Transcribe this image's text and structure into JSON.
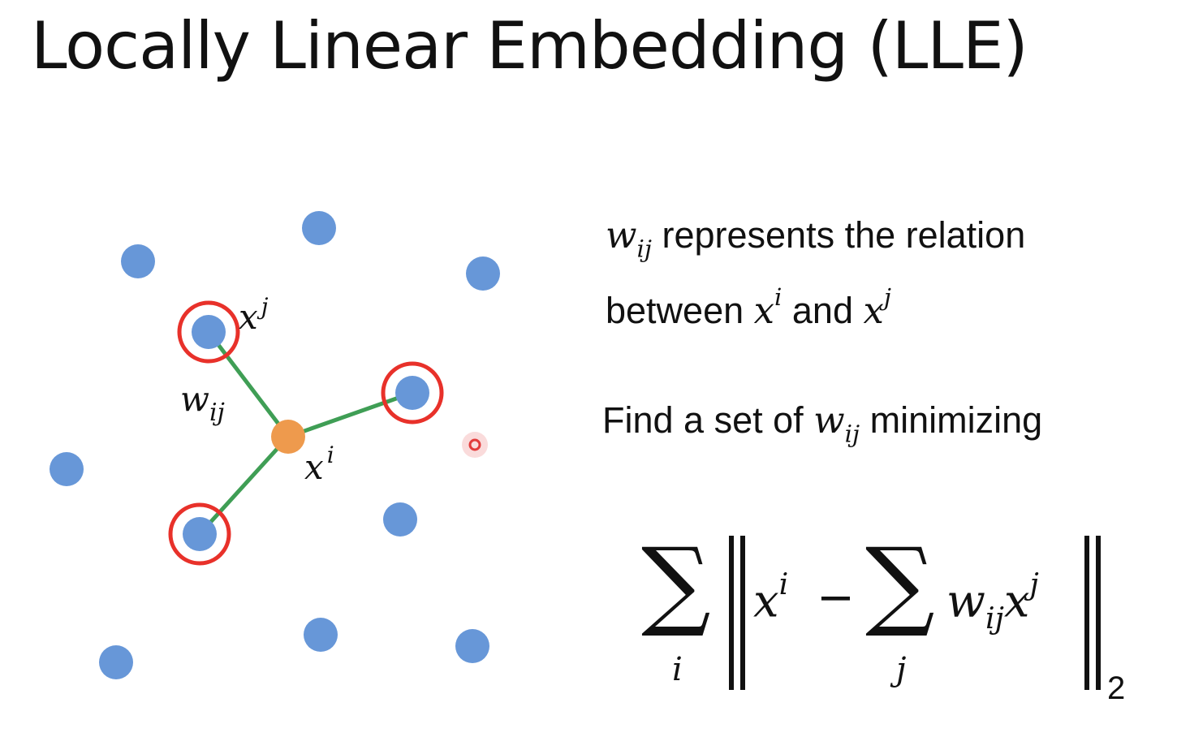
{
  "title": "Locally Linear Embedding (LLE)",
  "diagram": {
    "label_xj": "x",
    "label_xj_sup": "j",
    "label_wij": "w",
    "label_wij_sub": "ij",
    "label_xi": "x",
    "label_xi_sup": "i"
  },
  "colors": {
    "point": "#6797d8",
    "center_point": "#ee9a4d",
    "neighbor_ring": "#e8312a",
    "edge": "#3f9e55",
    "cursor": "#e23b3b"
  },
  "text": {
    "line1_var": "w",
    "line1_sub": "ij",
    "line1_rest": " represents the relation",
    "line2_a": "between ",
    "line2_x1": "x",
    "line2_x1_sup": "i",
    "line2_b": " and ",
    "line2_x2": "x",
    "line2_x2_sup": "j",
    "line3_a": "Find a set of ",
    "line3_var": "w",
    "line3_sub": "ij",
    "line3_b": " minimizing"
  },
  "formula": {
    "sum_symbol": "∑",
    "outer_index": "i",
    "x": "x",
    "x_sup": "i",
    "minus": "−",
    "inner_index": "j",
    "w": "w",
    "w_sub": "ij",
    "x2": "x",
    "x2_sup": "j",
    "norm_sub": "2"
  }
}
